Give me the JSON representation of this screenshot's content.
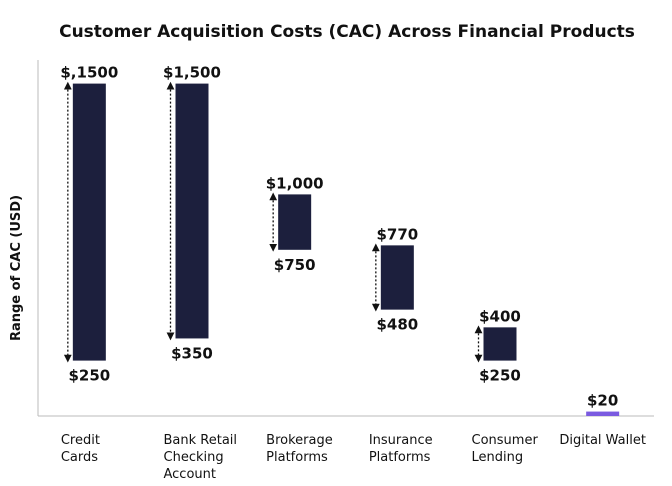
{
  "chart_data": {
    "type": "bar",
    "title": "Customer Acquisition Costs (CAC) Across Financial Products",
    "xlabel": "",
    "ylabel": "Range of CAC (USD)",
    "ylim": [
      0,
      1640
    ],
    "grid": false,
    "categories": [
      {
        "lines": [
          "Credit",
          "Cards"
        ],
        "low": 250,
        "high": 1500,
        "low_label": "$250",
        "high_label": "$,1500",
        "arrow": true
      },
      {
        "lines": [
          "Bank Retail",
          "Checking",
          "Account"
        ],
        "low": 350,
        "high": 1500,
        "low_label": "$350",
        "high_label": "$1,500",
        "arrow": true
      },
      {
        "lines": [
          "Brokerage",
          "Platforms"
        ],
        "low": 750,
        "high": 1000,
        "low_label": "$750",
        "high_label": "$1,000",
        "arrow": true
      },
      {
        "lines": [
          "Insurance",
          "Platforms"
        ],
        "low": 480,
        "high": 770,
        "low_label": "$480",
        "high_label": "$770",
        "arrow": true
      },
      {
        "lines": [
          "Consumer",
          "Lending"
        ],
        "low": 250,
        "high": 400,
        "low_label": "$250",
        "high_label": "$400",
        "arrow": true
      },
      {
        "lines": [
          "Digital Wallet"
        ],
        "low": 0,
        "high": 20,
        "low_label": "",
        "high_label": "$20",
        "arrow": false
      }
    ],
    "colors": {
      "bar": "#1c1f3d",
      "highlight": "#7a5ae0",
      "axis": "#bbbbbb",
      "text": "#111111"
    }
  }
}
